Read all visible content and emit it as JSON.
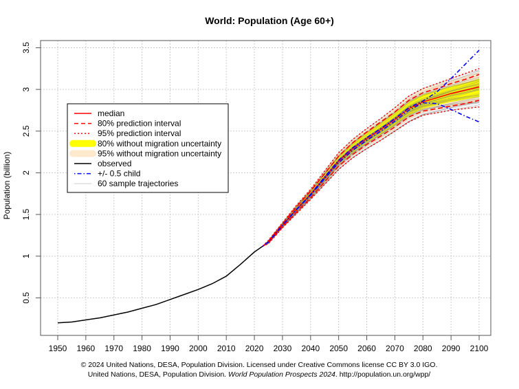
{
  "chart_data": {
    "type": "line",
    "title": "World: Population (Age 60+)",
    "xlabel": "",
    "ylabel": "Population (billion)",
    "xlim": [
      1944,
      2104
    ],
    "ylim": [
      0.05,
      3.6
    ],
    "x_ticks": [
      1950,
      1960,
      1970,
      1980,
      1990,
      2000,
      2010,
      2020,
      2030,
      2040,
      2050,
      2060,
      2070,
      2080,
      2090,
      2100
    ],
    "y_ticks": [
      0.5,
      1,
      1.5,
      2,
      2.5,
      3,
      3.5
    ],
    "y_tick_labels": [
      "0.5",
      "1",
      "1.5",
      "2",
      "2.5",
      "3",
      "3.5"
    ],
    "grid": true,
    "legend_position": "top-left",
    "legend": [
      {
        "label": "median",
        "color": "#ff0000",
        "style": "solid"
      },
      {
        "label": "80% prediction interval",
        "color": "#ff0000",
        "style": "dashed"
      },
      {
        "label": "95% prediction interval",
        "color": "#ff0000",
        "style": "dotted"
      },
      {
        "label": "80% without migration uncertainty",
        "color": "#ffff00",
        "style": "band"
      },
      {
        "label": "95% without migration uncertainty",
        "color": "#fde9cc",
        "style": "band"
      },
      {
        "label": "observed",
        "color": "#000000",
        "style": "solid"
      },
      {
        "label": "+/- 0.5 child",
        "color": "#0000ff",
        "style": "dashdot"
      },
      {
        "label": "60 sample trajectories",
        "color": "#c8c8c8",
        "style": "thin"
      }
    ],
    "observed": {
      "x": [
        1950,
        1955,
        1960,
        1965,
        1970,
        1975,
        1980,
        1985,
        1990,
        1995,
        2000,
        2005,
        2010,
        2015,
        2020,
        2023
      ],
      "y": [
        0.2,
        0.21,
        0.235,
        0.26,
        0.295,
        0.33,
        0.375,
        0.42,
        0.48,
        0.54,
        0.6,
        0.67,
        0.76,
        0.9,
        1.05,
        1.12
      ]
    },
    "projection_x": [
      2023,
      2025,
      2030,
      2035,
      2040,
      2045,
      2050,
      2055,
      2060,
      2065,
      2070,
      2075,
      2080,
      2085,
      2090,
      2095,
      2100
    ],
    "series": [
      {
        "name": "median",
        "values": [
          1.12,
          1.17,
          1.37,
          1.56,
          1.74,
          1.94,
          2.14,
          2.29,
          2.41,
          2.52,
          2.64,
          2.77,
          2.85,
          2.9,
          2.95,
          2.99,
          3.03
        ]
      },
      {
        "name": "80% lower",
        "values": [
          1.12,
          1.16,
          1.35,
          1.53,
          1.7,
          1.89,
          2.08,
          2.22,
          2.34,
          2.44,
          2.55,
          2.67,
          2.74,
          2.77,
          2.8,
          2.83,
          2.87
        ]
      },
      {
        "name": "80% upper",
        "values": [
          1.12,
          1.18,
          1.39,
          1.59,
          1.78,
          1.99,
          2.2,
          2.36,
          2.49,
          2.61,
          2.73,
          2.87,
          2.96,
          3.01,
          3.07,
          3.12,
          3.18
        ]
      },
      {
        "name": "95% lower",
        "values": [
          1.12,
          1.15,
          1.34,
          1.51,
          1.68,
          1.86,
          2.04,
          2.18,
          2.29,
          2.39,
          2.5,
          2.61,
          2.69,
          2.72,
          2.75,
          2.77,
          2.79
        ]
      },
      {
        "name": "95% upper",
        "values": [
          1.12,
          1.19,
          1.4,
          1.61,
          1.8,
          2.02,
          2.24,
          2.4,
          2.53,
          2.65,
          2.78,
          2.92,
          3.01,
          3.07,
          3.13,
          3.19,
          3.25
        ]
      },
      {
        "name": "80% w/o migration lower",
        "values": [
          1.12,
          1.16,
          1.35,
          1.54,
          1.71,
          1.9,
          2.1,
          2.24,
          2.36,
          2.46,
          2.57,
          2.69,
          2.77,
          2.81,
          2.85,
          2.88,
          2.91
        ]
      },
      {
        "name": "80% w/o migration upper",
        "values": [
          1.12,
          1.19,
          1.4,
          1.6,
          1.79,
          2.0,
          2.21,
          2.36,
          2.48,
          2.6,
          2.72,
          2.85,
          2.94,
          2.99,
          3.04,
          3.08,
          3.13
        ]
      },
      {
        "name": "95% w/o migration lower",
        "values": [
          1.12,
          1.15,
          1.34,
          1.52,
          1.69,
          1.87,
          2.06,
          2.2,
          2.31,
          2.41,
          2.52,
          2.64,
          2.72,
          2.76,
          2.79,
          2.82,
          2.85
        ]
      },
      {
        "name": "95% w/o migration upper",
        "values": [
          1.12,
          1.19,
          1.41,
          1.62,
          1.81,
          2.03,
          2.24,
          2.4,
          2.52,
          2.64,
          2.77,
          2.91,
          3.0,
          3.06,
          3.11,
          3.16,
          3.21
        ]
      },
      {
        "name": "-0.5 child",
        "values": [
          1.12,
          1.17,
          1.37,
          1.56,
          1.73,
          1.93,
          2.12,
          2.27,
          2.39,
          2.5,
          2.62,
          2.75,
          2.84,
          2.83,
          2.76,
          2.68,
          2.61
        ]
      },
      {
        "name": "+0.5 child",
        "values": [
          1.12,
          1.17,
          1.37,
          1.56,
          1.74,
          1.95,
          2.15,
          2.3,
          2.42,
          2.53,
          2.65,
          2.78,
          2.86,
          2.97,
          3.13,
          3.3,
          3.47
        ]
      }
    ],
    "sample_trajectories_count": 60
  },
  "footer": {
    "line1": "© 2024 United Nations, DESA, Population Division. Licensed under Creative Commons license CC BY 3.0 IGO.",
    "line2_prefix": "United Nations, DESA, Population Division. ",
    "line2_italic": "World Population Prospects 2024",
    "line2_suffix": ". http://population.un.org/wpp/"
  }
}
